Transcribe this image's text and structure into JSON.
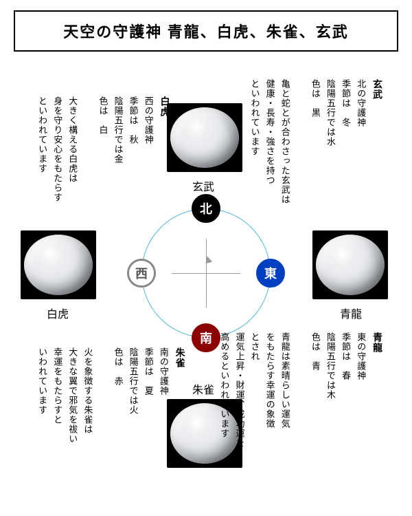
{
  "title": "天空の守護神  青龍、白虎、朱雀、玄武",
  "directions": {
    "n": "北",
    "e": "東",
    "s": "南",
    "w": "西"
  },
  "captions": {
    "n": "玄武",
    "e": "青龍",
    "s": "朱雀",
    "w": "白虎"
  },
  "texts": {
    "genbu": {
      "name": "玄武",
      "body": "北の守護神\n季節は　冬\n陰陽五行では水\n色は　黒\n\n亀と蛇とが合わさった玄武は\n健康・長寿・強さを持つ\nといわれています"
    },
    "seiryu": {
      "name": "青龍",
      "body": "東の守護神\n季節は　春\n陰陽五行では木\n色は　青\n\n青龍は素晴らしい運気\nをもたらす幸運の象徴\nとされ\n運気上昇・財運、成功運を\n高めるといわれています"
    },
    "suzaku": {
      "name": "朱雀",
      "body": "南の守護神\n季節は　夏\n陰陽五行では火\n色は　赤\n\n火を象徴する朱雀は\n大きな翼で邪気を祓い\n幸運をもたらすと\nいわれています"
    },
    "byakko": {
      "name": "白虎",
      "body": "西の守護神\n季節は　秋\n陰陽五行では金\n色は　白\n\n大きく構える白虎は\n身を守り安心をもたらす\nといわれています"
    }
  }
}
